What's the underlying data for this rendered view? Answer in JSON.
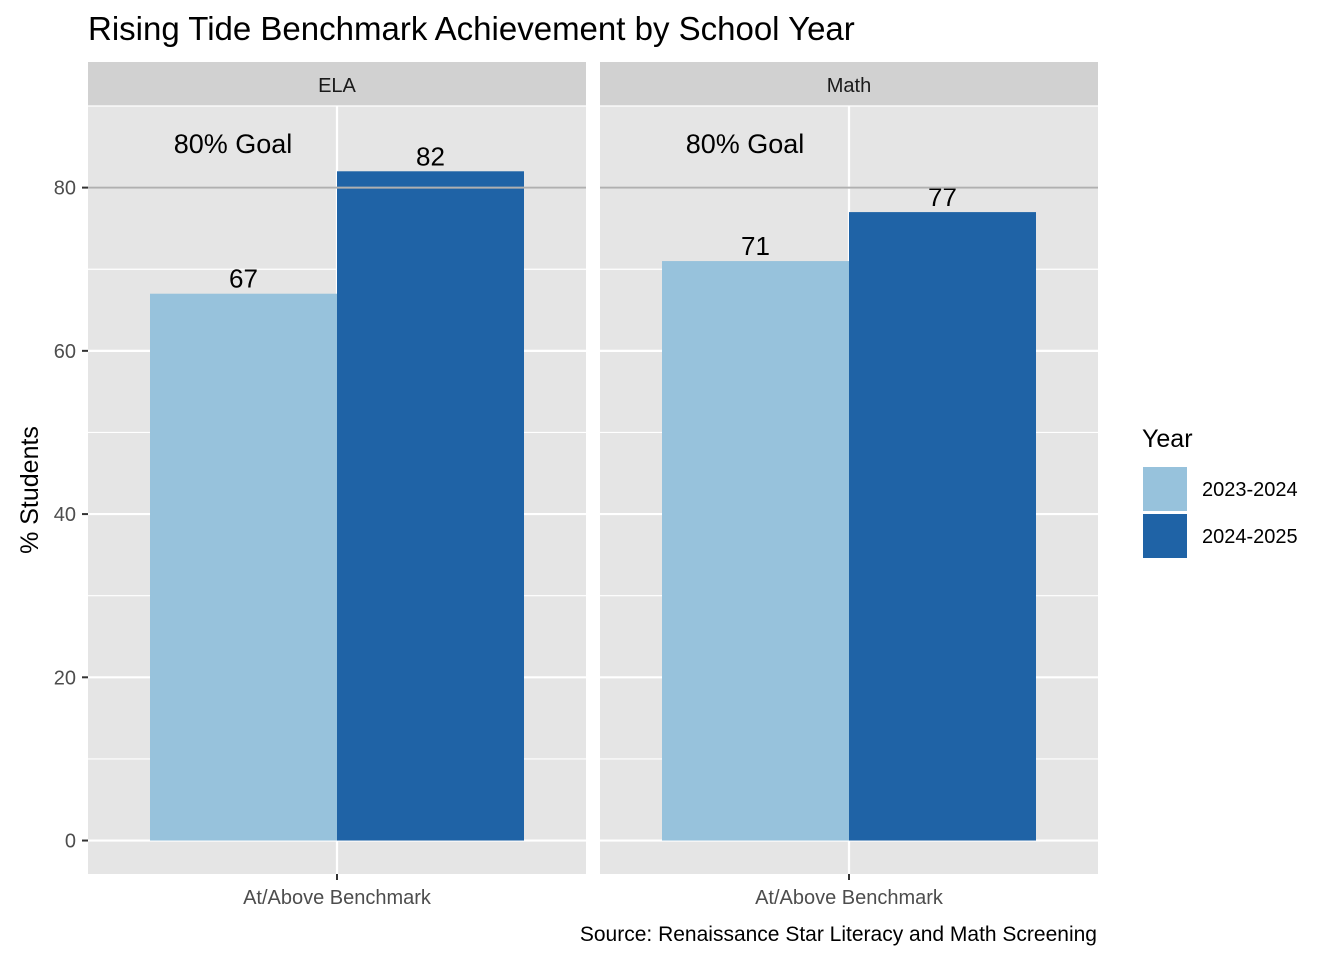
{
  "chart_data": {
    "type": "bar",
    "title": "Rising Tide Benchmark Achievement by School Year",
    "ylabel": "% Students",
    "xlabel": "",
    "caption": "Source: Renaissance Star Literacy and Math Screening",
    "ylim": [
      -4.1,
      90
    ],
    "yticks": [
      0,
      20,
      40,
      60,
      80
    ],
    "grid": true,
    "category": "At/Above Benchmark",
    "reference_line": {
      "value": 80,
      "label": "80% Goal"
    },
    "legend": {
      "title": "Year",
      "position": "right",
      "entries": [
        {
          "name": "2023-2024",
          "color": "#97c2dc"
        },
        {
          "name": "2024-2025",
          "color": "#1f63a6"
        }
      ]
    },
    "facets": [
      {
        "name": "ELA",
        "series": [
          {
            "name": "2023-2024",
            "value": 67
          },
          {
            "name": "2024-2025",
            "value": 82
          }
        ]
      },
      {
        "name": "Math",
        "series": [
          {
            "name": "2023-2024",
            "value": 71
          },
          {
            "name": "2024-2025",
            "value": 77
          }
        ]
      }
    ]
  },
  "colors": {
    "panel": "#e5e5e5",
    "strip": "#d1d1d1",
    "grid": "#ffffff",
    "reference_line": "#b0b0b0",
    "text": "#000000",
    "axis_text": "#4d4d4d"
  }
}
